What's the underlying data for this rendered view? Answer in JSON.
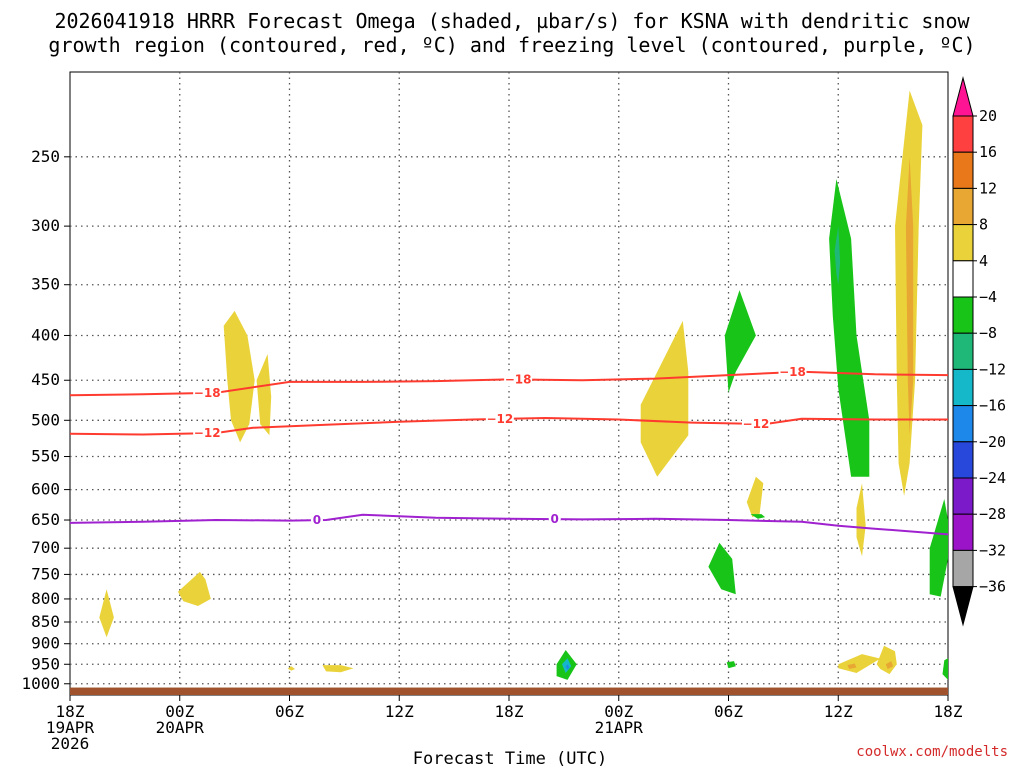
{
  "chart_data": {
    "type": "contour",
    "title_lines": [
      "2026041918 HRRR Forecast Omega (shaded, µbar/s) for KSNA with dendritic snow",
      "growth region (contoured, red, ºC) and freezing level (contoured, purple, ºC)"
    ],
    "xlabel": "Forecast Time (UTC)",
    "credit": "coolwx.com/modelts",
    "x_range_hours": [
      0,
      48
    ],
    "y_range_hpa": [
      1030,
      200
    ],
    "pressure_ticks": [
      250,
      300,
      350,
      400,
      450,
      500,
      550,
      600,
      650,
      700,
      750,
      800,
      850,
      900,
      950,
      1000
    ],
    "time_ticks": [
      {
        "hour": 0,
        "lines": [
          "18Z",
          "19APR",
          "2026"
        ]
      },
      {
        "hour": 6,
        "lines": [
          "00Z",
          "20APR"
        ]
      },
      {
        "hour": 12,
        "lines": [
          "06Z"
        ]
      },
      {
        "hour": 18,
        "lines": [
          "12Z"
        ]
      },
      {
        "hour": 24,
        "lines": [
          "18Z"
        ]
      },
      {
        "hour": 30,
        "lines": [
          "00Z",
          "21APR"
        ]
      },
      {
        "hour": 36,
        "lines": [
          "06Z"
        ]
      },
      {
        "hour": 42,
        "lines": [
          "12Z"
        ]
      },
      {
        "hour": 48,
        "lines": [
          "18Z"
        ]
      }
    ],
    "colorbar": {
      "labels": [
        "20",
        "16",
        "12",
        "8",
        "4",
        "−4",
        "−8",
        "−12",
        "−16",
        "−20",
        "−24",
        "−28",
        "−32",
        "−36"
      ],
      "colors": [
        "#ff1493",
        "#ff4040",
        "#e8781a",
        "#e8a633",
        "#ead33a",
        "#ffffff",
        "#18c418",
        "#20b878",
        "#14b8c8",
        "#1e88ea",
        "#2848dc",
        "#7a1ac8",
        "#9c14c8",
        "#a6a6a6",
        "#000000"
      ]
    },
    "contours": [
      {
        "name": "-18",
        "color": "#ff3b30",
        "label": "−18",
        "label_hours": [
          7.5,
          24.5,
          39.5
        ],
        "points": [
          [
            0,
            468
          ],
          [
            4,
            467
          ],
          [
            8,
            465
          ],
          [
            12,
            452
          ],
          [
            16,
            452
          ],
          [
            20,
            451
          ],
          [
            24,
            449
          ],
          [
            28,
            450
          ],
          [
            32,
            448
          ],
          [
            36,
            444
          ],
          [
            40,
            440
          ],
          [
            44,
            443
          ],
          [
            48,
            444
          ]
        ]
      },
      {
        "name": "-12",
        "color": "#ff3b30",
        "label": "−12",
        "label_hours": [
          7.5,
          23.5,
          37.5
        ],
        "points": [
          [
            0,
            518
          ],
          [
            4,
            519
          ],
          [
            8,
            517
          ],
          [
            10,
            510
          ],
          [
            14,
            506
          ],
          [
            18,
            502
          ],
          [
            22,
            499
          ],
          [
            26,
            497
          ],
          [
            30,
            499
          ],
          [
            34,
            503
          ],
          [
            38,
            505
          ],
          [
            40,
            498
          ],
          [
            44,
            499
          ],
          [
            48,
            499
          ]
        ]
      },
      {
        "name": "0",
        "color": "#a021d0",
        "label": "0",
        "label_hours": [
          13.5,
          26.5
        ],
        "points": [
          [
            0,
            655
          ],
          [
            4,
            653
          ],
          [
            8,
            650
          ],
          [
            12,
            651
          ],
          [
            14,
            650
          ],
          [
            16,
            641
          ],
          [
            20,
            646
          ],
          [
            24,
            648
          ],
          [
            28,
            649
          ],
          [
            32,
            648
          ],
          [
            36,
            650
          ],
          [
            40,
            653
          ],
          [
            42,
            660
          ],
          [
            44,
            665
          ],
          [
            48,
            675
          ]
        ]
      }
    ],
    "omega_regions": [
      {
        "color": "#ead33a",
        "points": [
          [
            1.6,
            840
          ],
          [
            2.0,
            780
          ],
          [
            2.4,
            840
          ],
          [
            2.0,
            885
          ]
        ]
      },
      {
        "color": "#ead33a",
        "points": [
          [
            5.9,
            785
          ],
          [
            7.1,
            745
          ],
          [
            7.4,
            760
          ],
          [
            7.7,
            800
          ],
          [
            7.0,
            815
          ],
          [
            6.2,
            805
          ]
        ]
      },
      {
        "color": "#ead33a",
        "points": [
          [
            8.4,
            390
          ],
          [
            9.0,
            375
          ],
          [
            9.7,
            400
          ],
          [
            10.1,
            450
          ],
          [
            9.8,
            505
          ],
          [
            9.3,
            530
          ],
          [
            8.8,
            500
          ],
          [
            8.6,
            450
          ]
        ]
      },
      {
        "color": "#ead33a",
        "points": [
          [
            10.2,
            450
          ],
          [
            10.8,
            420
          ],
          [
            11.0,
            470
          ],
          [
            10.9,
            520
          ],
          [
            10.4,
            505
          ]
        ]
      },
      {
        "color": "#ead33a",
        "points": [
          [
            31.2,
            480
          ],
          [
            33.5,
            385
          ],
          [
            33.8,
            440
          ],
          [
            33.8,
            520
          ],
          [
            32.1,
            580
          ],
          [
            31.2,
            530
          ]
        ]
      },
      {
        "color": "#ead33a",
        "points": [
          [
            37.0,
            620
          ],
          [
            37.5,
            580
          ],
          [
            37.9,
            590
          ],
          [
            37.7,
            640
          ],
          [
            37.3,
            645
          ]
        ]
      },
      {
        "color": "#ead33a",
        "points": [
          [
            43.0,
            630
          ],
          [
            43.3,
            590
          ],
          [
            43.5,
            660
          ],
          [
            43.3,
            715
          ],
          [
            43.0,
            680
          ]
        ]
      },
      {
        "color": "#ead33a",
        "points": [
          [
            45.1,
            300
          ],
          [
            45.9,
            210
          ],
          [
            46.6,
            230
          ],
          [
            46.4,
            300
          ],
          [
            46.2,
            450
          ],
          [
            45.9,
            560
          ],
          [
            45.6,
            610
          ],
          [
            45.3,
            560
          ],
          [
            45.2,
            450
          ]
        ]
      },
      {
        "color": "#e8a633",
        "points": [
          [
            45.7,
            300
          ],
          [
            45.9,
            250
          ],
          [
            46.1,
            300
          ],
          [
            46.1,
            450
          ],
          [
            45.9,
            520
          ],
          [
            45.8,
            450
          ]
        ]
      },
      {
        "color": "#ead33a",
        "points": [
          [
            11.9,
            961
          ],
          [
            12.1,
            955
          ],
          [
            12.3,
            962
          ],
          [
            12.1,
            966
          ]
        ]
      },
      {
        "color": "#ead33a",
        "points": [
          [
            13.8,
            952
          ],
          [
            14.8,
            952
          ],
          [
            15.5,
            960
          ],
          [
            14.8,
            970
          ],
          [
            14.0,
            968
          ]
        ]
      },
      {
        "color": "#ead33a",
        "points": [
          [
            42.0,
            950
          ],
          [
            43.3,
            925
          ],
          [
            44.3,
            936
          ],
          [
            43.0,
            972
          ],
          [
            42.0,
            960
          ]
        ]
      },
      {
        "color": "#ead33a",
        "points": [
          [
            44.1,
            950
          ],
          [
            44.5,
            905
          ],
          [
            45.1,
            918
          ],
          [
            45.2,
            950
          ],
          [
            44.8,
            975
          ],
          [
            44.3,
            962
          ]
        ]
      },
      {
        "color": "#e8a633",
        "points": [
          [
            42.5,
            952
          ],
          [
            42.9,
            948
          ],
          [
            43.0,
            958
          ],
          [
            42.6,
            962
          ]
        ]
      },
      {
        "color": "#e8a633",
        "points": [
          [
            44.6,
            950
          ],
          [
            44.9,
            942
          ],
          [
            45.0,
            955
          ],
          [
            44.7,
            962
          ]
        ]
      },
      {
        "color": "#18c418",
        "points": [
          [
            35.8,
            400
          ],
          [
            36.6,
            355
          ],
          [
            37.5,
            400
          ],
          [
            36.4,
            440
          ],
          [
            36.0,
            465
          ]
        ]
      },
      {
        "color": "#18c418",
        "points": [
          [
            41.5,
            310
          ],
          [
            41.9,
            265
          ],
          [
            42.7,
            310
          ],
          [
            43.0,
            400
          ],
          [
            43.7,
            500
          ],
          [
            43.7,
            580
          ],
          [
            42.7,
            580
          ],
          [
            42.0,
            460
          ],
          [
            41.7,
            380
          ]
        ]
      },
      {
        "color": "#20b878",
        "points": [
          [
            41.8,
            320
          ],
          [
            42.0,
            300
          ],
          [
            42.1,
            330
          ],
          [
            42.0,
            350
          ],
          [
            41.9,
            340
          ]
        ]
      },
      {
        "color": "#18c418",
        "points": [
          [
            34.9,
            735
          ],
          [
            35.5,
            690
          ],
          [
            36.2,
            720
          ],
          [
            36.4,
            790
          ],
          [
            35.6,
            780
          ]
        ]
      },
      {
        "color": "#18c418",
        "points": [
          [
            37.2,
            640
          ],
          [
            37.8,
            640
          ],
          [
            38.0,
            645
          ],
          [
            37.6,
            648
          ]
        ]
      },
      {
        "color": "#18c418",
        "points": [
          [
            47.0,
            700
          ],
          [
            47.8,
            615
          ],
          [
            48.0,
            650
          ],
          [
            48.0,
            720
          ],
          [
            47.6,
            795
          ],
          [
            47.0,
            790
          ]
        ]
      },
      {
        "color": "#18c418",
        "points": [
          [
            26.6,
            950
          ],
          [
            27.1,
            915
          ],
          [
            27.7,
            950
          ],
          [
            27.2,
            990
          ],
          [
            26.6,
            980
          ]
        ]
      },
      {
        "color": "#14b8c8",
        "points": [
          [
            26.9,
            950
          ],
          [
            27.2,
            935
          ],
          [
            27.4,
            955
          ],
          [
            27.1,
            972
          ]
        ]
      },
      {
        "color": "#1e88ea",
        "points": [
          [
            27.1,
            956
          ],
          [
            27.2,
            950
          ],
          [
            27.3,
            958
          ],
          [
            27.2,
            964
          ]
        ]
      },
      {
        "color": "#18c418",
        "points": [
          [
            35.9,
            945
          ],
          [
            36.3,
            942
          ],
          [
            36.4,
            955
          ],
          [
            36.0,
            960
          ]
        ]
      },
      {
        "color": "#18c418",
        "points": [
          [
            47.8,
            940
          ],
          [
            48.0,
            935
          ],
          [
            48.0,
            990
          ],
          [
            47.7,
            975
          ]
        ]
      }
    ],
    "ground_hpa": 1010
  }
}
